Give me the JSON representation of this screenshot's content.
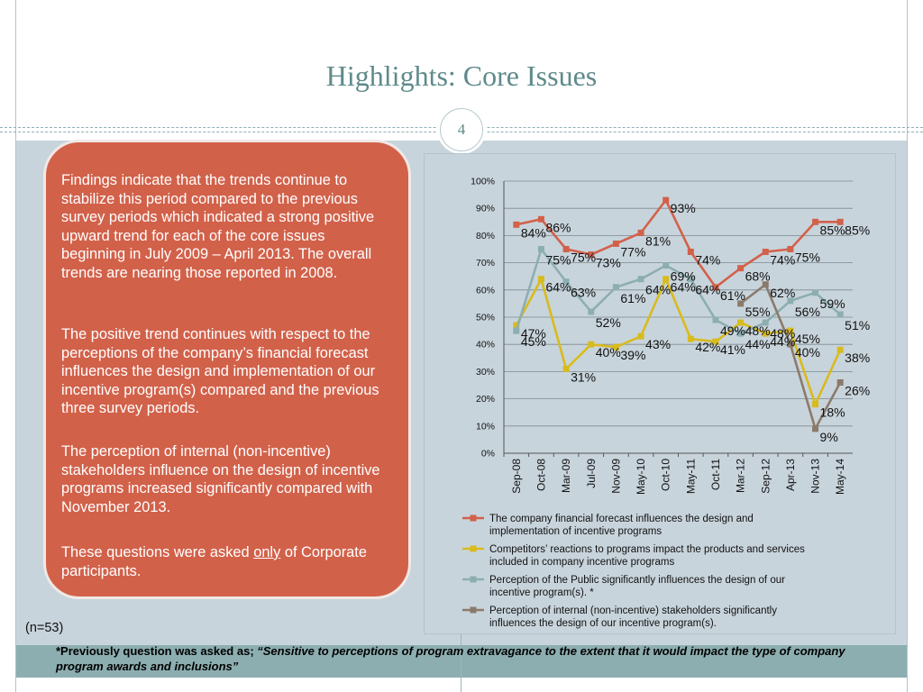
{
  "slide": {
    "title": "Highlights: Core Issues",
    "page_number": "4",
    "paragraph1": "Findings indicate that the trends continue to stabilize this period compared to the previous survey periods which indicated a strong positive upward trend for each of the core issues beginning in July 2009 – April 2013. The overall trends are nearing those reported in 2008.",
    "paragraph2": "The positive trend continues with respect to the perceptions of the company’s financial forecast influences the design and implementation of our incentive program(s) compared and the previous three survey periods.",
    "paragraph3": "The perception of internal (non-incentive) stakeholders influence on the design of incentive programs increased significantly compared with November 2013.",
    "paragraph4_before": "These questions were asked ",
    "paragraph4_underlined": "only",
    "paragraph4_after": " of Corporate participants.",
    "sample_size": "(n=53)",
    "footnote_lead": "*Previously question was asked as; ",
    "footnote_quote": "“Sensitive to perceptions of program extravagance to the extent that it would impact the type of company program awards and inclusions”"
  },
  "colors": {
    "panel": "#d2614a",
    "title": "#5f8a8b",
    "background": "#c8d4dc",
    "footer_band": "#8daeb0"
  },
  "chart_data": {
    "type": "line",
    "categories": [
      "Sep-08",
      "Oct-08",
      "Mar-09",
      "Jul-09",
      "Nov-09",
      "May-10",
      "Oct-10",
      "May-11",
      "Oct-11",
      "Mar-12",
      "Sep-12",
      "Apr-13",
      "Nov-13",
      "May-14"
    ],
    "ylim": [
      0,
      100
    ],
    "y_ticks": [
      "0%",
      "10%",
      "20%",
      "30%",
      "40%",
      "50%",
      "60%",
      "70%",
      "80%",
      "90%",
      "100%"
    ],
    "grid": true,
    "legend_position": "bottom",
    "series": [
      {
        "name": "The company financial forecast influences the design and implementation of incentive programs",
        "color": "#d2614a",
        "values": [
          84,
          86,
          75,
          73,
          77,
          81,
          93,
          74,
          61,
          68,
          74,
          75,
          85,
          85
        ],
        "labels": [
          "84%",
          "86%",
          "75%",
          "73%",
          "77%",
          "81%",
          "93%",
          "74%",
          "61%",
          "68%",
          "74%",
          "75%",
          "85%",
          "85%"
        ]
      },
      {
        "name": "Competitors’ reactions to programs impact the products and services included in company incentive programs",
        "color": "#d8bb1c",
        "values": [
          47,
          64,
          31,
          40,
          39,
          43,
          64,
          42,
          41,
          48,
          44,
          45,
          18,
          38
        ],
        "labels": [
          "47%",
          "64%",
          "31%",
          "40%",
          "39%",
          "43%",
          "64%",
          "42%",
          "41%",
          "48%",
          "44%",
          "45%",
          "18%",
          "38%"
        ]
      },
      {
        "name": "Perception of the Public significantly influences the design of our incentive program(s). *",
        "color": "#8daeb0",
        "values": [
          45,
          75,
          63,
          52,
          61,
          64,
          69,
          64,
          49,
          44,
          48,
          56,
          59,
          51
        ],
        "labels": [
          "45%",
          "75%",
          "63%",
          "52%",
          "61%",
          "64%",
          "69%",
          "64%",
          "49%",
          "44%",
          "48%",
          "56%",
          "59%",
          "51%"
        ]
      },
      {
        "name": "Perception of internal (non-incentive) stakeholders significantly influences the design of our incentive program(s).",
        "color": "#8b7a6b",
        "values": [
          null,
          null,
          null,
          null,
          null,
          null,
          null,
          null,
          null,
          55,
          62,
          40,
          9,
          26
        ],
        "labels": [
          "",
          "",
          "",
          "",
          "",
          "",
          "",
          "",
          "",
          "55%",
          "62%",
          "40%",
          "9%",
          "26%"
        ]
      }
    ]
  }
}
